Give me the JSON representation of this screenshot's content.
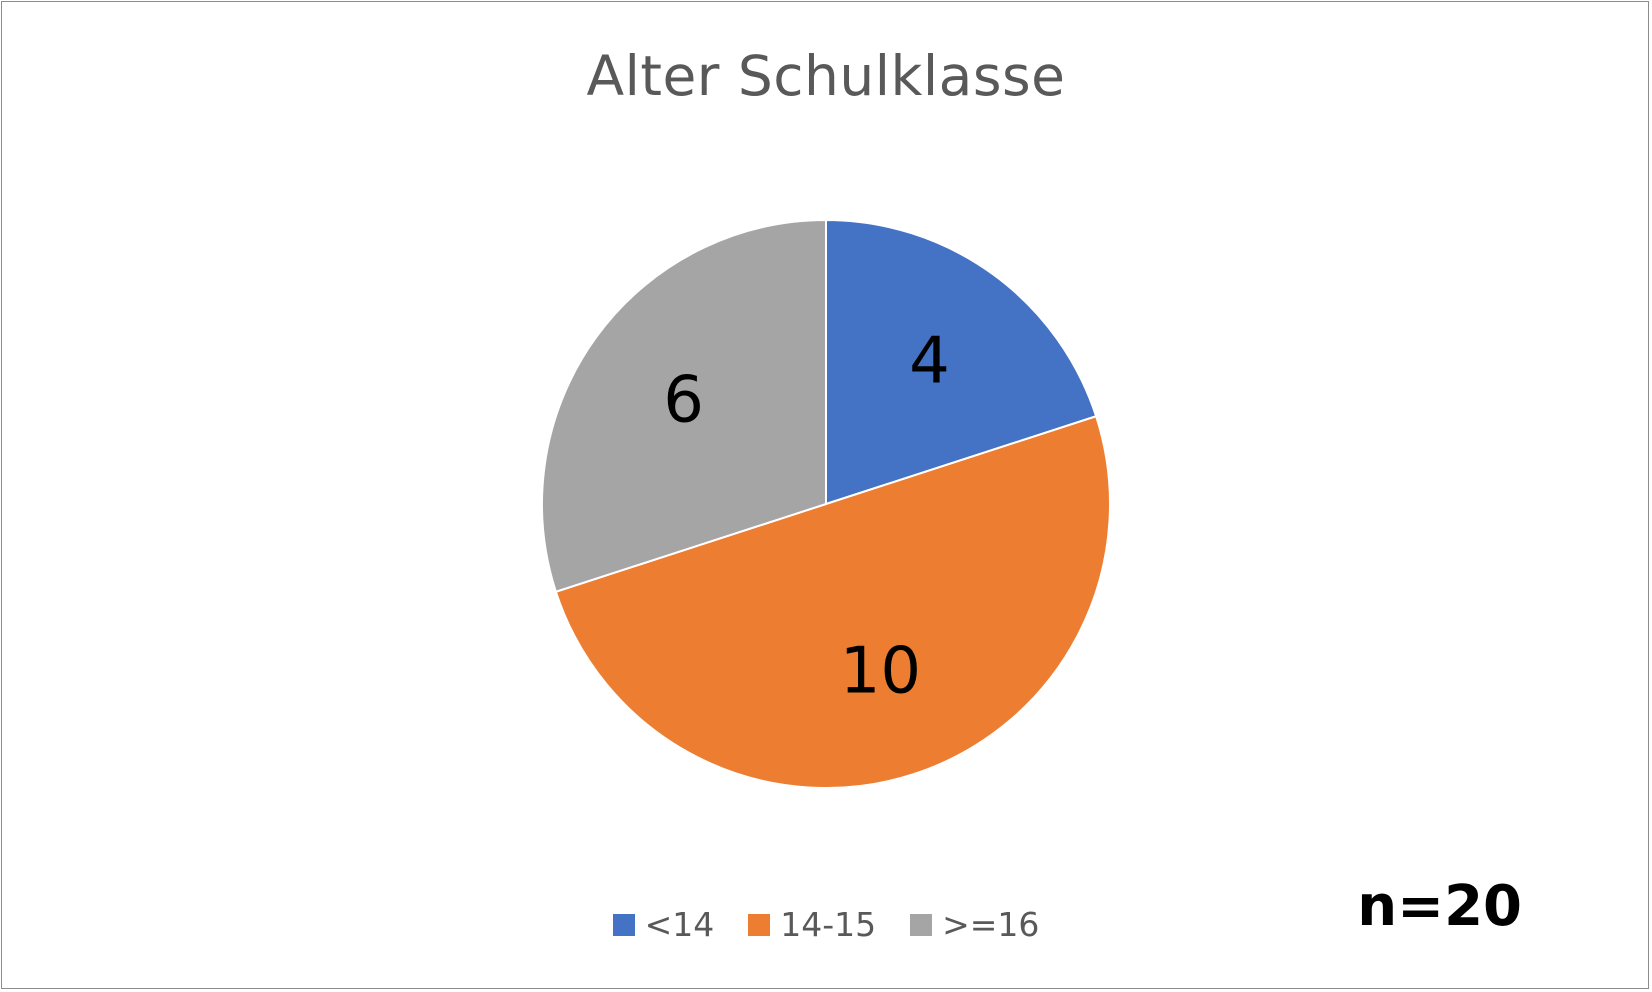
{
  "chart_data": {
    "type": "pie",
    "title": "Alter Schulklasse",
    "categories": [
      "<14",
      "14-15",
      ">=16"
    ],
    "values": [
      4,
      10,
      6
    ],
    "data_labels": [
      "4",
      "10",
      "6"
    ],
    "colors": [
      "#4472c4",
      "#ed7d31",
      "#a5a5a5"
    ],
    "legend": {
      "position": "bottom",
      "entries": [
        "<14",
        "14-15",
        ">=16"
      ]
    },
    "annotation": "n=20"
  }
}
